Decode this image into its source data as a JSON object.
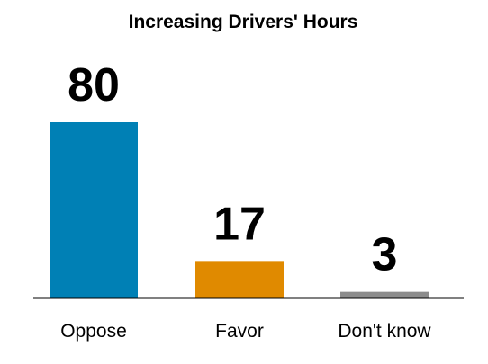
{
  "chart_data": {
    "type": "bar",
    "title": "Increasing Drivers' Hours",
    "xlabel": "",
    "ylabel": "",
    "categories": [
      "Oppose",
      "Favor",
      "Don't know"
    ],
    "values": [
      80,
      17,
      3
    ],
    "data_labels": [
      "80",
      "17",
      "3"
    ],
    "colors": [
      "#0080B5",
      "#E08A00",
      "#8C8C8C"
    ],
    "axis_color": "#000000",
    "ylim": [
      0,
      80
    ],
    "grid": false,
    "legend": "none"
  }
}
